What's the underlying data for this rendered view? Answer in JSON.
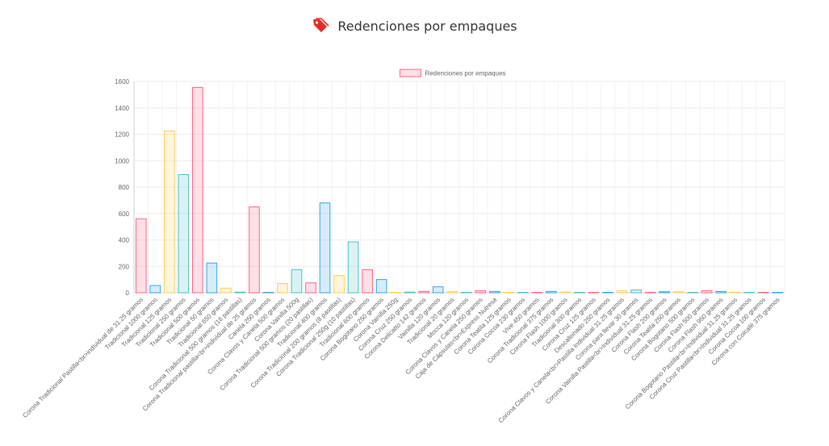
{
  "header": {
    "title": "Redenciones por empaques",
    "icon": "tags-icon",
    "icon_color": "#e02b2b"
  },
  "chart_data": {
    "type": "bar",
    "title": "",
    "xlabel": "",
    "ylabel": "",
    "ylim": [
      0,
      1600
    ],
    "yticks": [
      0,
      200,
      400,
      600,
      800,
      1000,
      1200,
      1400,
      1600
    ],
    "grid": true,
    "legend": {
      "placement": "top-center"
    },
    "categories": [
      "Corona Tradicional Pastilla<br>individual de 31.25 gramos",
      "Tradicional 1000 gramos",
      "Tradicional 125 gramos",
      "Tradicional 250 gramos",
      "Tradicional 500 gramos",
      "Tradicional 50 gramos",
      "Tradicional 650 gramos",
      "Corona Tradicional 500 gramos (16 pastillas)",
      "Corona Tradicional pastilla<br>individual de 25 gramos",
      "Canela 250 gramos",
      "Corona Clavos y Canela 500 gramos",
      "Corona Vainilla 500g",
      "Corona Tradicional 500 gramos (20 pastillas)",
      "Tradicional 400 gramos",
      "Corona Tradicional 200 gramos (8 pastillas)",
      "Corona Tradicional 250g (10 pastillas)",
      "Tradicional 600 gramos",
      "Corona Bogotano 250 gramos",
      "Corona Vainilla 250g",
      "Corona Cruz 250 gramos",
      "Corona Delicatto 142 gramos",
      "Vainilla 120 gramos",
      "Tradicional 20 gramos",
      "Mocca 120 gramos",
      "Corona Clavos y Canela 250 gramos",
      "Caja de Cápsulas<br>Express Nutresa",
      "Corona Teatila 125 gramos",
      "Corona Cocoa 230 gramos",
      "Vive 450 gramos",
      "Corona Tradicional 375 gramos",
      "Corona Flash 1000 gramos",
      "Tradicional 300 gramos",
      "Corona Cruz 125 gramos",
      "Descafeinado 250 gramos",
      "Corona Clavos y Canela<br>Pastilla Individual 31.25 gramos",
      "Corona para llevar 30 gramos",
      "Corona Vainilla Pastilla<br>Individual 31.25 gramos",
      "Corona Flash 200 gramos",
      "Corona Teatila 250 gramos",
      "Corona Bogotano 500 gramos",
      "Corona Flash 500 gramos",
      "Corona Flash 950 gramos",
      "Corona Bogotano Pastilla<br>Individual 31.25 gramos",
      "Corona Cruz Pastilla<br>Individual 31.25 gramos",
      "Corona Cocoa 100 gramos",
      "Corona con Colcafé 375 gramos"
    ],
    "series": [
      {
        "name": "Redenciones por empaques",
        "values": [
          560,
          55,
          1225,
          895,
          1555,
          225,
          35,
          5,
          650,
          3,
          70,
          175,
          75,
          680,
          130,
          385,
          175,
          100,
          2,
          5,
          10,
          45,
          8,
          2,
          15,
          10,
          2,
          2,
          2,
          10,
          5,
          3,
          2,
          2,
          15,
          22,
          2,
          8,
          8,
          2,
          15,
          10,
          2,
          2,
          2,
          2
        ]
      }
    ],
    "bar_style": {
      "fills": [
        "rgba(255,99,132,0.2)",
        "rgba(54,162,235,0.2)",
        "rgba(255,206,86,0.2)",
        "rgba(75,192,192,0.2)"
      ],
      "borders": [
        "#ff6384",
        "#36a2eb",
        "#ffce56",
        "#4bc0c0"
      ]
    },
    "legend_colors": {
      "fill": "rgba(255,99,132,0.2)",
      "border": "#ff6384"
    }
  }
}
